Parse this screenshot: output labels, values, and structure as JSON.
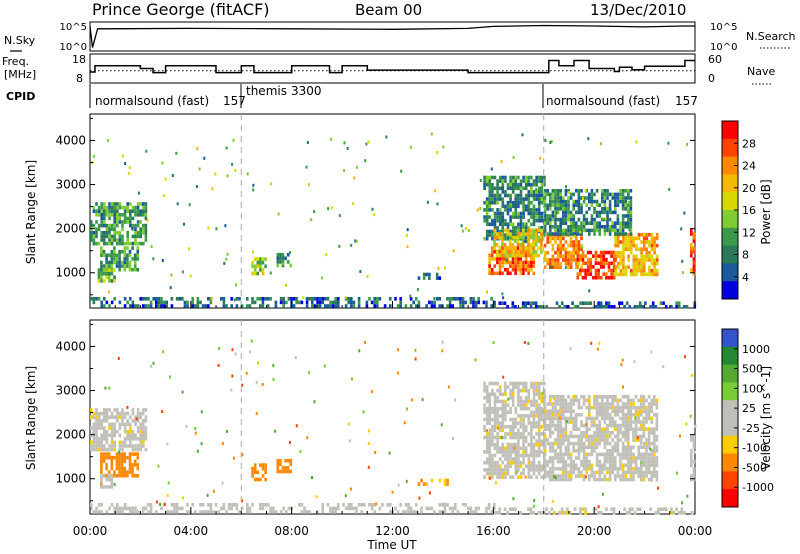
{
  "header": {
    "station": "Prince George (fitACF)",
    "beam": "Beam 00",
    "date": "13/Dec/2010"
  },
  "status_panels": {
    "nsky_label": "N.Sky",
    "nsearch_label": "N.Search",
    "nsky_ticks": [
      "10^5",
      "10^0"
    ],
    "nsearch_ticks": [
      "10^5",
      "10^0"
    ],
    "freq_label_line1": "Freq.",
    "freq_label_line2": "[MHz]",
    "freq_ticks": [
      "18",
      "8"
    ],
    "nave_label": "Nave",
    "nave_ticks": [
      "60",
      "0"
    ],
    "cpid_label": "CPID",
    "cpid_segments": [
      {
        "name": "normalsound (fast)",
        "id": "157",
        "start_hour": 0
      },
      {
        "name": "themis",
        "id": "3300",
        "start_hour": 6
      },
      {
        "name": "normalsound (fast)",
        "id": "157",
        "start_hour": 18
      }
    ],
    "nsky_series": [
      {
        "hour": 0,
        "level": 4.8
      },
      {
        "hour": 0.1,
        "level": 0.3
      },
      {
        "hour": 0.3,
        "level": 4.2
      },
      {
        "hour": 4,
        "level": 4.3
      },
      {
        "hour": 8,
        "level": 4.2
      },
      {
        "hour": 12,
        "level": 4.1
      },
      {
        "hour": 15,
        "level": 4.3
      },
      {
        "hour": 16,
        "level": 4.7
      },
      {
        "hour": 18,
        "level": 4.9
      },
      {
        "hour": 20,
        "level": 4.8
      },
      {
        "hour": 22,
        "level": 4.6
      },
      {
        "hour": 23.5,
        "level": 4.8
      },
      {
        "hour": 24,
        "level": 4.8
      }
    ],
    "freq_series": [
      {
        "hour": 0,
        "mhz": 11.5
      },
      {
        "hour": 0.2,
        "mhz": 14.2
      },
      {
        "hour": 2,
        "mhz": 13
      },
      {
        "hour": 2.5,
        "mhz": 11.2
      },
      {
        "hour": 3,
        "mhz": 14.2
      },
      {
        "hour": 5,
        "mhz": 11.2
      },
      {
        "hour": 6,
        "mhz": 14.2
      },
      {
        "hour": 6.5,
        "mhz": 11.2
      },
      {
        "hour": 8,
        "mhz": 14.2
      },
      {
        "hour": 9.5,
        "mhz": 11.2
      },
      {
        "hour": 10,
        "mhz": 14.2
      },
      {
        "hour": 11,
        "mhz": 12.3
      },
      {
        "hour": 14,
        "mhz": 12.3
      },
      {
        "hour": 15,
        "mhz": 11.2
      },
      {
        "hour": 18.2,
        "mhz": 16.5
      },
      {
        "hour": 18.6,
        "mhz": 14.2
      },
      {
        "hour": 19.2,
        "mhz": 16.5
      },
      {
        "hour": 19.8,
        "mhz": 13
      },
      {
        "hour": 20.8,
        "mhz": 11.7
      },
      {
        "hour": 21,
        "mhz": 13.5
      },
      {
        "hour": 21.5,
        "mhz": 12.5
      },
      {
        "hour": 22,
        "mhz": 14
      },
      {
        "hour": 23.6,
        "mhz": 16.5
      },
      {
        "hour": 24,
        "mhz": 16.5
      }
    ],
    "nave_level": 24
  },
  "colorbars": {
    "power": {
      "label": "Power [dB]",
      "ticks": [
        "28",
        "24",
        "20",
        "16",
        "12",
        "8",
        "4"
      ],
      "colors": [
        "#ff0000",
        "#ff4400",
        "#ff8800",
        "#f5b800",
        "#d6d800",
        "#7fcc33",
        "#3a9a4a",
        "#2a7a5a",
        "#1a5a9a",
        "#0000dd"
      ]
    },
    "velocity": {
      "label": "Velocity [m s^-1]",
      "ticks": [
        "1000",
        "500",
        "100",
        "25",
        "-25",
        "-100",
        "-500",
        "-1000"
      ],
      "colors": [
        "#3355cc",
        "#228833",
        "#55aa33",
        "#77cc33",
        "#c0c0b8",
        "#c0c0b8",
        "#ffcc00",
        "#ff8800",
        "#ff4400",
        "#ff0000"
      ]
    }
  },
  "chart_data": [
    {
      "type": "heatmap",
      "title": "Power",
      "xlabel": "Time UT",
      "ylabel": "Slant Range [km]",
      "x_ticks": [
        "00:00",
        "04:00",
        "08:00",
        "12:00",
        "16:00",
        "20:00",
        "00:00"
      ],
      "xlim_hours": [
        0,
        24
      ],
      "ylim": [
        200,
        4600
      ],
      "y_ticks": [
        1000,
        2000,
        3000,
        4000
      ],
      "dashed_time_markers_hours": [
        6,
        18
      ],
      "echo_regions": [
        {
          "t0": 0.0,
          "t1": 2.2,
          "r0": 1700,
          "r1": 2600,
          "power": 10
        },
        {
          "t0": 0.4,
          "t1": 1.9,
          "r0": 1050,
          "r1": 1600,
          "power": 10
        },
        {
          "t0": 0.3,
          "t1": 1.0,
          "r0": 800,
          "r1": 1100,
          "power": 12
        },
        {
          "t0": 6.4,
          "t1": 7.0,
          "r0": 1000,
          "r1": 1350,
          "power": 14
        },
        {
          "t0": 7.4,
          "t1": 8.0,
          "r0": 1150,
          "r1": 1450,
          "power": 10
        },
        {
          "t0": 13.0,
          "t1": 14.2,
          "r0": 900,
          "r1": 1000,
          "power": 6
        },
        {
          "t0": 15.6,
          "t1": 18.0,
          "r0": 1800,
          "r1": 3200,
          "power": 8
        },
        {
          "t0": 15.8,
          "t1": 17.6,
          "r0": 1000,
          "r1": 1600,
          "power": 24
        },
        {
          "t0": 16.0,
          "t1": 17.9,
          "r0": 1400,
          "r1": 2000,
          "power": 18
        },
        {
          "t0": 18.0,
          "t1": 19.5,
          "r0": 1100,
          "r1": 1900,
          "power": 22
        },
        {
          "t0": 19.3,
          "t1": 20.8,
          "r0": 900,
          "r1": 1500,
          "power": 26
        },
        {
          "t0": 20.8,
          "t1": 22.5,
          "r0": 1000,
          "r1": 1900,
          "power": 20
        },
        {
          "t0": 18.0,
          "t1": 21.5,
          "r0": 1900,
          "r1": 2900,
          "power": 8
        },
        {
          "t0": 23.8,
          "t1": 24.0,
          "r0": 1000,
          "r1": 2000,
          "power": 24
        },
        {
          "t0": 0.0,
          "t1": 16.0,
          "r0": 250,
          "r1": 450,
          "power": 6
        },
        {
          "t0": 16.0,
          "t1": 24.0,
          "r0": 250,
          "r1": 350,
          "power": 5
        }
      ]
    },
    {
      "type": "heatmap",
      "title": "Velocity",
      "xlabel": "Time UT",
      "ylabel": "Slant Range [km]",
      "x_ticks": [
        "00:00",
        "04:00",
        "08:00",
        "12:00",
        "16:00",
        "20:00",
        "00:00"
      ],
      "xlim_hours": [
        0,
        24
      ],
      "ylim": [
        200,
        4600
      ],
      "y_ticks": [
        1000,
        2000,
        3000,
        4000
      ],
      "dashed_time_markers_hours": [
        6,
        18
      ],
      "echo_regions": [
        {
          "t0": 0.0,
          "t1": 2.2,
          "r0": 1700,
          "r1": 2600,
          "velocity": 0
        },
        {
          "t0": 0.4,
          "t1": 1.9,
          "r0": 1050,
          "r1": 1600,
          "velocity": -150
        },
        {
          "t0": 0.4,
          "t1": 0.9,
          "r0": 800,
          "r1": 1100,
          "velocity": 50
        },
        {
          "t0": 6.4,
          "t1": 7.0,
          "r0": 1000,
          "r1": 1350,
          "velocity": -150
        },
        {
          "t0": 7.4,
          "t1": 8.0,
          "r0": 1150,
          "r1": 1450,
          "velocity": -150
        },
        {
          "t0": 13.0,
          "t1": 14.2,
          "r0": 900,
          "r1": 1000,
          "velocity": -100
        },
        {
          "t0": 15.6,
          "t1": 18.0,
          "r0": 1000,
          "r1": 3200,
          "velocity": 0
        },
        {
          "t0": 18.0,
          "t1": 22.5,
          "r0": 1000,
          "r1": 2900,
          "velocity": 0
        },
        {
          "t0": 23.8,
          "t1": 24.0,
          "r0": 1000,
          "r1": 2000,
          "velocity": 0
        },
        {
          "t0": 0.0,
          "t1": 16.0,
          "r0": 250,
          "r1": 450,
          "velocity": 60
        },
        {
          "t0": 16.0,
          "t1": 24.0,
          "r0": 250,
          "r1": 350,
          "velocity": 0
        }
      ]
    }
  ]
}
